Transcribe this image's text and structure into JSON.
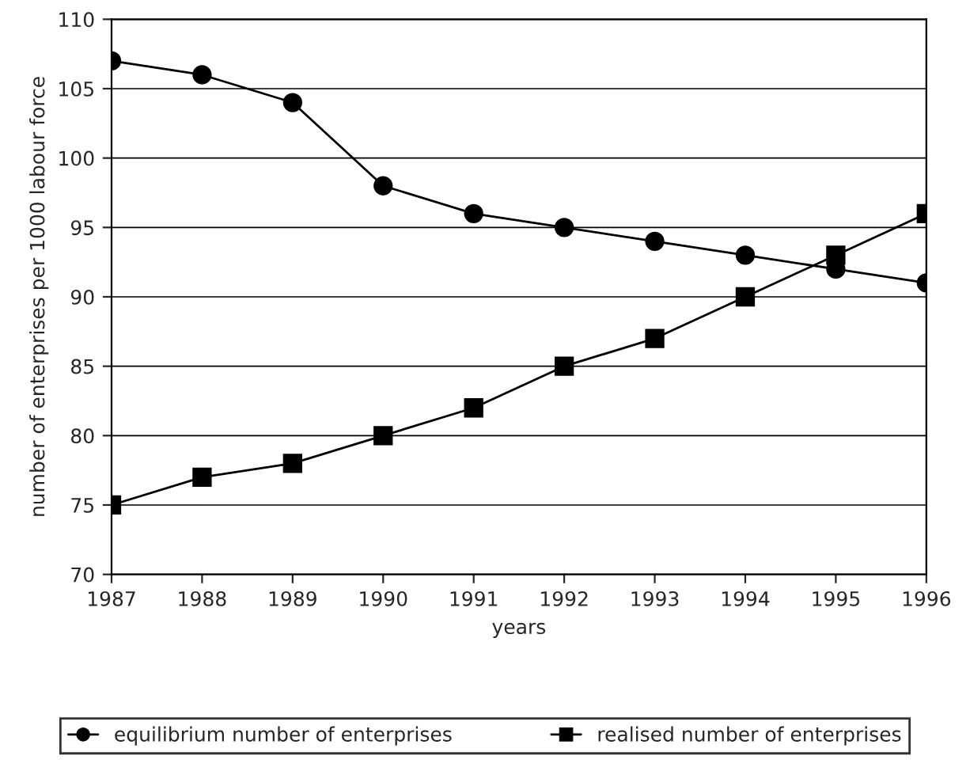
{
  "chart_data": {
    "type": "line",
    "xlabel": "years",
    "ylabel": "number of enterprises per 1000 labour force",
    "x": [
      1987,
      1988,
      1989,
      1990,
      1991,
      1992,
      1993,
      1994,
      1995,
      1996
    ],
    "series": [
      {
        "name": "equilibrium number of enterprises",
        "color": "#000000",
        "marker": "circle",
        "values": [
          107,
          106,
          104,
          98,
          96,
          95,
          94,
          93,
          92,
          91
        ]
      },
      {
        "name": "realised number of enterprises",
        "color": "#000000",
        "marker": "square",
        "values": [
          75,
          77,
          78,
          80,
          82,
          85,
          87,
          90,
          93,
          96
        ]
      }
    ],
    "xlim": [
      1987,
      1996
    ],
    "xticks": [
      1987,
      1988,
      1989,
      1990,
      1991,
      1992,
      1993,
      1994,
      1995,
      1996
    ],
    "ylim": [
      70,
      110
    ],
    "yticks": [
      70,
      75,
      80,
      85,
      90,
      95,
      100,
      105,
      110
    ],
    "grid": "y",
    "legend": "bottom",
    "line_style": "solid"
  }
}
